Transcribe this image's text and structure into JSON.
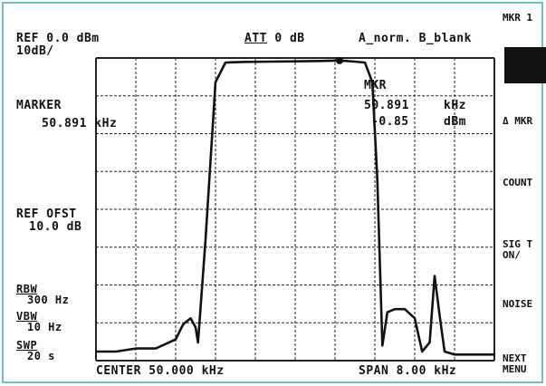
{
  "header": {
    "ref_level": "REF 0.0 dBm",
    "scale": "10dB/",
    "attenuation_label": "ATT",
    "attenuation_value": "0 dB",
    "trace_modes": "A_norm. B_blank"
  },
  "marker_panel": {
    "label": "MARKER",
    "frequency": "50.891 kHz"
  },
  "ref_offset": {
    "label": "REF OFST",
    "value": "10.0 dB"
  },
  "bandwidths": {
    "rbw_label": "RBW",
    "rbw_value": "300 Hz",
    "vbw_label": "VBW",
    "vbw_value": "10 Hz",
    "swp_label": "SWP",
    "swp_value": "20 s"
  },
  "marker_readout": {
    "label": "MKR",
    "frequency_value": "50.891",
    "frequency_unit": "kHz",
    "level_value": "-0.85",
    "level_unit": "dBm"
  },
  "footer": {
    "center": "CENTER 50.000 kHz",
    "span": "SPAN 8.00 kHz"
  },
  "softkeys": {
    "mkr": "MKR 1",
    "delta_mkr": "Δ MKR",
    "count": "COUNT",
    "sig_track_line1": "SIG T",
    "sig_track_line2": "ON/",
    "noise": "NOISE",
    "next_line1": "NEXT",
    "next_line2": "MENU"
  },
  "colors": {
    "frame": "#6fbfc4",
    "trace": "#111111",
    "grid": "#222222"
  },
  "chart_data": {
    "type": "line",
    "x_unit": "kHz",
    "y_unit": "dBm",
    "xlim": [
      46,
      54
    ],
    "ylim": [
      -100,
      0
    ],
    "grid": true,
    "x": [
      46.0,
      46.4,
      46.8,
      47.2,
      47.6,
      47.75,
      47.9,
      48.0,
      48.05,
      48.2,
      48.4,
      48.6,
      49.0,
      49.5,
      50.0,
      50.5,
      50.891,
      51.2,
      51.4,
      51.55,
      51.65,
      51.75,
      51.85,
      52.0,
      52.2,
      52.4,
      52.55,
      52.7,
      52.8,
      52.9,
      53.0,
      53.2,
      53.6,
      54.0
    ],
    "y": [
      -97,
      -97,
      -96,
      -96,
      -93,
      -88,
      -86,
      -89,
      -94,
      -60,
      -8,
      -1.5,
      -1.3,
      -1.2,
      -1.1,
      -1.0,
      -0.85,
      -1.2,
      -1.5,
      -8,
      -40,
      -95,
      -84,
      -83,
      -83,
      -86,
      -97,
      -94,
      -72,
      -85,
      -97,
      -98,
      -98,
      -98
    ]
  }
}
